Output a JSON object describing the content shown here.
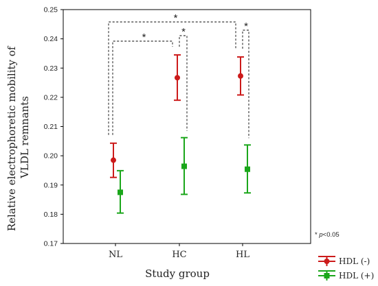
{
  "chart_data": {
    "type": "scatter",
    "categories": [
      "NL",
      "HC",
      "HL"
    ],
    "xlabel": "Study group",
    "ylabel_lines": [
      "Relative electrophoretic mobility of",
      "VLDL remnants"
    ],
    "ylim": [
      0.17,
      0.25
    ],
    "yticks": [
      "0.17",
      "0.18",
      "0.19",
      "0.20",
      "0.21",
      "0.22",
      "0.23",
      "0.24",
      "0.25"
    ],
    "grid": false,
    "legend_position": "bottom-right",
    "series": [
      {
        "name": "HDL (-)",
        "color": "#cc1a1a",
        "marker": "circle",
        "values": [
          0.1985,
          0.2267,
          0.2273
        ],
        "lower": [
          0.1926,
          0.219,
          0.2208
        ],
        "upper": [
          0.2043,
          0.2345,
          0.2338
        ]
      },
      {
        "name": "HDL (+)",
        "color": "#1aa61a",
        "marker": "square",
        "values": [
          0.1875,
          0.1964,
          0.1954
        ],
        "lower": [
          0.1804,
          0.1868,
          0.1873
        ],
        "upper": [
          0.1949,
          0.2062,
          0.2037
        ]
      }
    ],
    "annotations": {
      "significance_symbol": "*",
      "note": "* p<0.05",
      "brackets": [
        {
          "from": "NL HDL (-)",
          "to": "HC HDL (-)"
        },
        {
          "from": "NL HDL (-)",
          "to": "HL HDL (-)"
        },
        {
          "from": "HC HDL (-)",
          "to": "HC HDL (+)"
        },
        {
          "from": "HL HDL (-)",
          "to": "HL HDL (+)"
        }
      ]
    }
  }
}
